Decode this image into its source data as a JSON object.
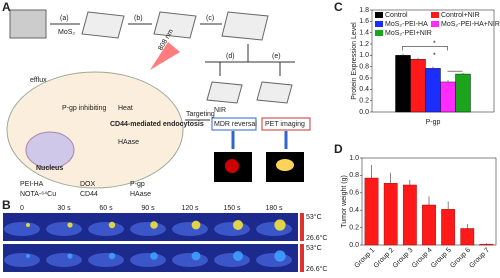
{
  "chart_data": [
    {
      "type": "grouped-bar",
      "y_label": "Protein Expression Level",
      "categories": [
        "P-gp"
      ],
      "ylim": [
        0,
        1.8
      ],
      "yticks": [
        {
          "value": 0,
          "label": "0.0"
        },
        {
          "value": 0.2,
          "label": "0.2"
        },
        {
          "value": 0.4,
          "label": "0.4"
        },
        {
          "value": 0.6,
          "label": "0.6"
        },
        {
          "value": 0.8,
          "label": "0.8"
        },
        {
          "value": 1.0,
          "label": "1.0"
        },
        {
          "value": 1.2,
          "label": "1.2"
        },
        {
          "value": 1.4,
          "label": "1.4"
        },
        {
          "value": 1.6,
          "label": "1.6"
        },
        {
          "value": 1.8,
          "label": "1.8"
        }
      ],
      "series": [
        {
          "name": "Control",
          "color": "#000000",
          "values": [
            1.0
          ],
          "errors": [
            0.03
          ]
        },
        {
          "name": "Control+NIR",
          "color": "#ff1a1a",
          "values": [
            0.93
          ],
          "errors": [
            0.03
          ]
        },
        {
          "name": "MoS₂-PEI-HA",
          "color": "#1a2fff",
          "values": [
            0.77
          ],
          "errors": [
            0.03
          ]
        },
        {
          "name": "MoS₂-PEI-HA+NIR",
          "color": "#ff2bff",
          "values": [
            0.53
          ],
          "errors": [
            0.03
          ]
        },
        {
          "name": "MoS₂-PEI+NIR",
          "color": "#1aa51a",
          "values": [
            0.67
          ],
          "errors": [
            0.02
          ]
        }
      ],
      "annotations": [
        "*",
        "*"
      ]
    },
    {
      "type": "bar",
      "y_label": "Tumor weight (g)",
      "color": "#ff1a1a",
      "categories": [
        "Group 1",
        "Group 2",
        "Group 3",
        "Group 4",
        "Group 5",
        "Group 6",
        "Group 7"
      ],
      "values": [
        0.77,
        0.71,
        0.69,
        0.46,
        0.41,
        0.19,
        0.01
      ],
      "errors": [
        0.15,
        0.12,
        0.06,
        0.1,
        0.09,
        0.05,
        0.01
      ],
      "ylim": [
        0,
        1.0
      ],
      "yticks": [
        {
          "value": 0,
          "label": "0.0"
        },
        {
          "value": 0.2,
          "label": "0.2"
        },
        {
          "value": 0.4,
          "label": "0.4"
        },
        {
          "value": 0.6,
          "label": "0.6"
        },
        {
          "value": 0.8,
          "label": "0.8"
        },
        {
          "value": 1.0,
          "label": "1.0"
        }
      ]
    }
  ],
  "diagram": {
    "panel_labels": [
      "A",
      "B",
      "C",
      "D"
    ],
    "steps": [
      "(a)",
      "(b)",
      "(c)",
      "(d)",
      "(e)"
    ],
    "reagent": "MoS₂",
    "laser": "808 nm",
    "labels": [
      "efflux",
      "P-gp inhibiting",
      "Heat",
      "CD44-mediated endocytosis",
      "Nucleus",
      "HAase",
      "Targeting",
      "NIR",
      "MDR reversal",
      "PET imaging"
    ],
    "legend": [
      "PEI-HA",
      "DOX",
      "P-gp",
      "NOTA-⁶⁴Cu",
      "CD44",
      "HAase"
    ],
    "thermal": {
      "times": [
        "0",
        "30 s",
        "60 s",
        "90 s",
        "120 s",
        "150 s",
        "180 s"
      ],
      "scale_max": "53°C",
      "scale_min": "26.6°C"
    }
  }
}
